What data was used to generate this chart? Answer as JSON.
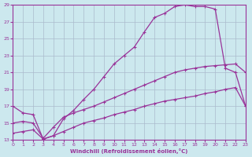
{
  "xlabel": "Windchill (Refroidissement éolien,°C)",
  "bg_color": "#cce8ee",
  "grid_color": "#aabbcc",
  "line_color": "#993399",
  "xlim": [
    0,
    23
  ],
  "ylim": [
    13,
    29
  ],
  "xticks": [
    0,
    1,
    2,
    3,
    4,
    5,
    6,
    7,
    8,
    9,
    10,
    11,
    12,
    13,
    14,
    15,
    16,
    17,
    18,
    19,
    20,
    21,
    22,
    23
  ],
  "yticks": [
    13,
    15,
    17,
    19,
    21,
    23,
    25,
    27,
    29
  ],
  "curve_upper_x": [
    0,
    1,
    2,
    3,
    4,
    5,
    6,
    7,
    8,
    9,
    10,
    11,
    12,
    13,
    14,
    15,
    16,
    17,
    18,
    19,
    20,
    21,
    22,
    23
  ],
  "curve_upper_y": [
    17.0,
    16.2,
    16.0,
    13.1,
    13.5,
    15.5,
    16.5,
    17.8,
    19.0,
    20.5,
    22.0,
    23.0,
    24.0,
    25.8,
    27.5,
    28.0,
    28.8,
    29.0,
    28.8,
    28.8,
    28.5,
    21.5,
    21.0,
    17.0
  ],
  "curve_mid_x": [
    0,
    1,
    2,
    3,
    4,
    5,
    6,
    7,
    8,
    9,
    10,
    11,
    12,
    13,
    14,
    15,
    16,
    17,
    18,
    19,
    20,
    21,
    22,
    23
  ],
  "curve_mid_y": [
    15.0,
    15.2,
    15.0,
    13.2,
    14.5,
    15.7,
    16.2,
    16.6,
    17.0,
    17.5,
    18.0,
    18.5,
    19.0,
    19.5,
    20.0,
    20.5,
    21.0,
    21.3,
    21.5,
    21.7,
    21.8,
    21.9,
    22.0,
    21.0
  ],
  "curve_lower_x": [
    0,
    1,
    2,
    3,
    4,
    5,
    6,
    7,
    8,
    9,
    10,
    11,
    12,
    13,
    14,
    15,
    16,
    17,
    18,
    19,
    20,
    21,
    22,
    23
  ],
  "curve_lower_y": [
    13.8,
    14.0,
    14.2,
    13.1,
    13.5,
    14.0,
    14.5,
    15.0,
    15.3,
    15.6,
    16.0,
    16.3,
    16.6,
    17.0,
    17.3,
    17.6,
    17.8,
    18.0,
    18.2,
    18.5,
    18.7,
    19.0,
    19.2,
    17.0
  ]
}
